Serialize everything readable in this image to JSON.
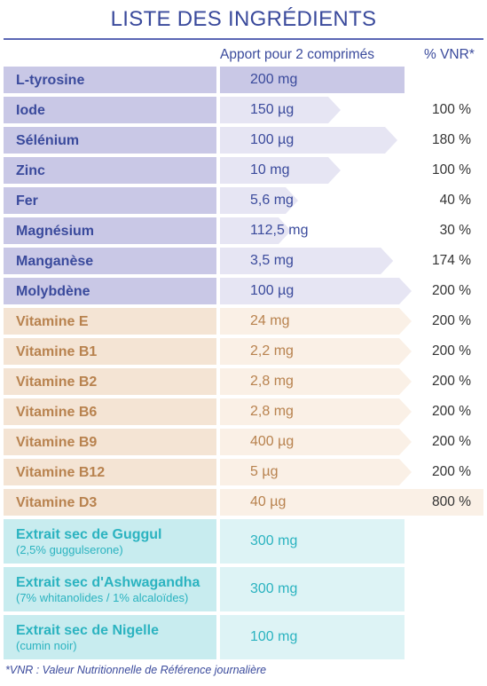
{
  "title": "LISTE DES INGRÉDIENTS",
  "headers": {
    "apport": "Apport pour 2 comprimés",
    "vnr": "% VNR*"
  },
  "colors": {
    "mineral_name_bg": "#c9c8e6",
    "mineral_band": "#e6e5f3",
    "mineral_text": "#3a4a9c",
    "vitamin_name_bg": "#f4e4d4",
    "vitamin_band": "#faf0e6",
    "vitamin_text": "#b8824e",
    "extract_name_bg": "#c8ecef",
    "extract_band": "#ddf3f5",
    "extract_text": "#2bb3c0"
  },
  "chart_data": {
    "type": "table",
    "title": "LISTE DES INGRÉDIENTS",
    "columns": [
      "Apport pour 2 comprimés",
      "% VNR*"
    ],
    "rows": [
      {
        "group": "mineral",
        "name": "L-tyrosine",
        "amount": "200 mg",
        "vnr": "",
        "vnr_value": null
      },
      {
        "group": "mineral",
        "name": "Iode",
        "amount": "150 µg",
        "vnr": "100 %",
        "vnr_value": 100
      },
      {
        "group": "mineral",
        "name": "Sélénium",
        "amount": "100 µg",
        "vnr": "180 %",
        "vnr_value": 180
      },
      {
        "group": "mineral",
        "name": "Zinc",
        "amount": "10 mg",
        "vnr": "100 %",
        "vnr_value": 100
      },
      {
        "group": "mineral",
        "name": "Fer",
        "amount": "5,6 mg",
        "vnr": "40 %",
        "vnr_value": 40
      },
      {
        "group": "mineral",
        "name": "Magnésium",
        "amount": "112,5 mg",
        "vnr": "30 %",
        "vnr_value": 30
      },
      {
        "group": "mineral",
        "name": "Manganèse",
        "amount": "3,5 mg",
        "vnr": "174 %",
        "vnr_value": 174
      },
      {
        "group": "mineral",
        "name": "Molybdène",
        "amount": "100 µg",
        "vnr": "200 %",
        "vnr_value": 200
      },
      {
        "group": "vitamin",
        "name": "Vitamine E",
        "amount": "24 mg",
        "vnr": "200 %",
        "vnr_value": 200
      },
      {
        "group": "vitamin",
        "name": "Vitamine B1",
        "amount": "2,2 mg",
        "vnr": "200 %",
        "vnr_value": 200
      },
      {
        "group": "vitamin",
        "name": "Vitamine B2",
        "amount": "2,8 mg",
        "vnr": "200 %",
        "vnr_value": 200
      },
      {
        "group": "vitamin",
        "name": "Vitamine B6",
        "amount": "2,8 mg",
        "vnr": "200 %",
        "vnr_value": 200
      },
      {
        "group": "vitamin",
        "name": "Vitamine B9",
        "amount": "400 µg",
        "vnr": "200 %",
        "vnr_value": 200
      },
      {
        "group": "vitamin",
        "name": "Vitamine B12",
        "amount": "5 µg",
        "vnr": "200 %",
        "vnr_value": 200
      },
      {
        "group": "vitamin",
        "name": "Vitamine D3",
        "amount": "40 µg",
        "vnr": "800 %",
        "vnr_value": 800
      },
      {
        "group": "extract",
        "name": "Extrait sec de Guggul",
        "sub": "(2,5% guggulserone)",
        "amount": "300 mg",
        "vnr": "",
        "vnr_value": null
      },
      {
        "group": "extract",
        "name": "Extrait sec d'Ashwagandha",
        "sub": "(7% whitanolides / 1% alcaloïdes)",
        "amount": "300 mg",
        "vnr": "",
        "vnr_value": null
      },
      {
        "group": "extract",
        "name": "Extrait sec de Nigelle",
        "sub": "(cumin noir)",
        "amount": "100 mg",
        "vnr": "",
        "vnr_value": null
      }
    ]
  },
  "footnote": "*VNR : Valeur Nutritionnelle de Référence journalière"
}
